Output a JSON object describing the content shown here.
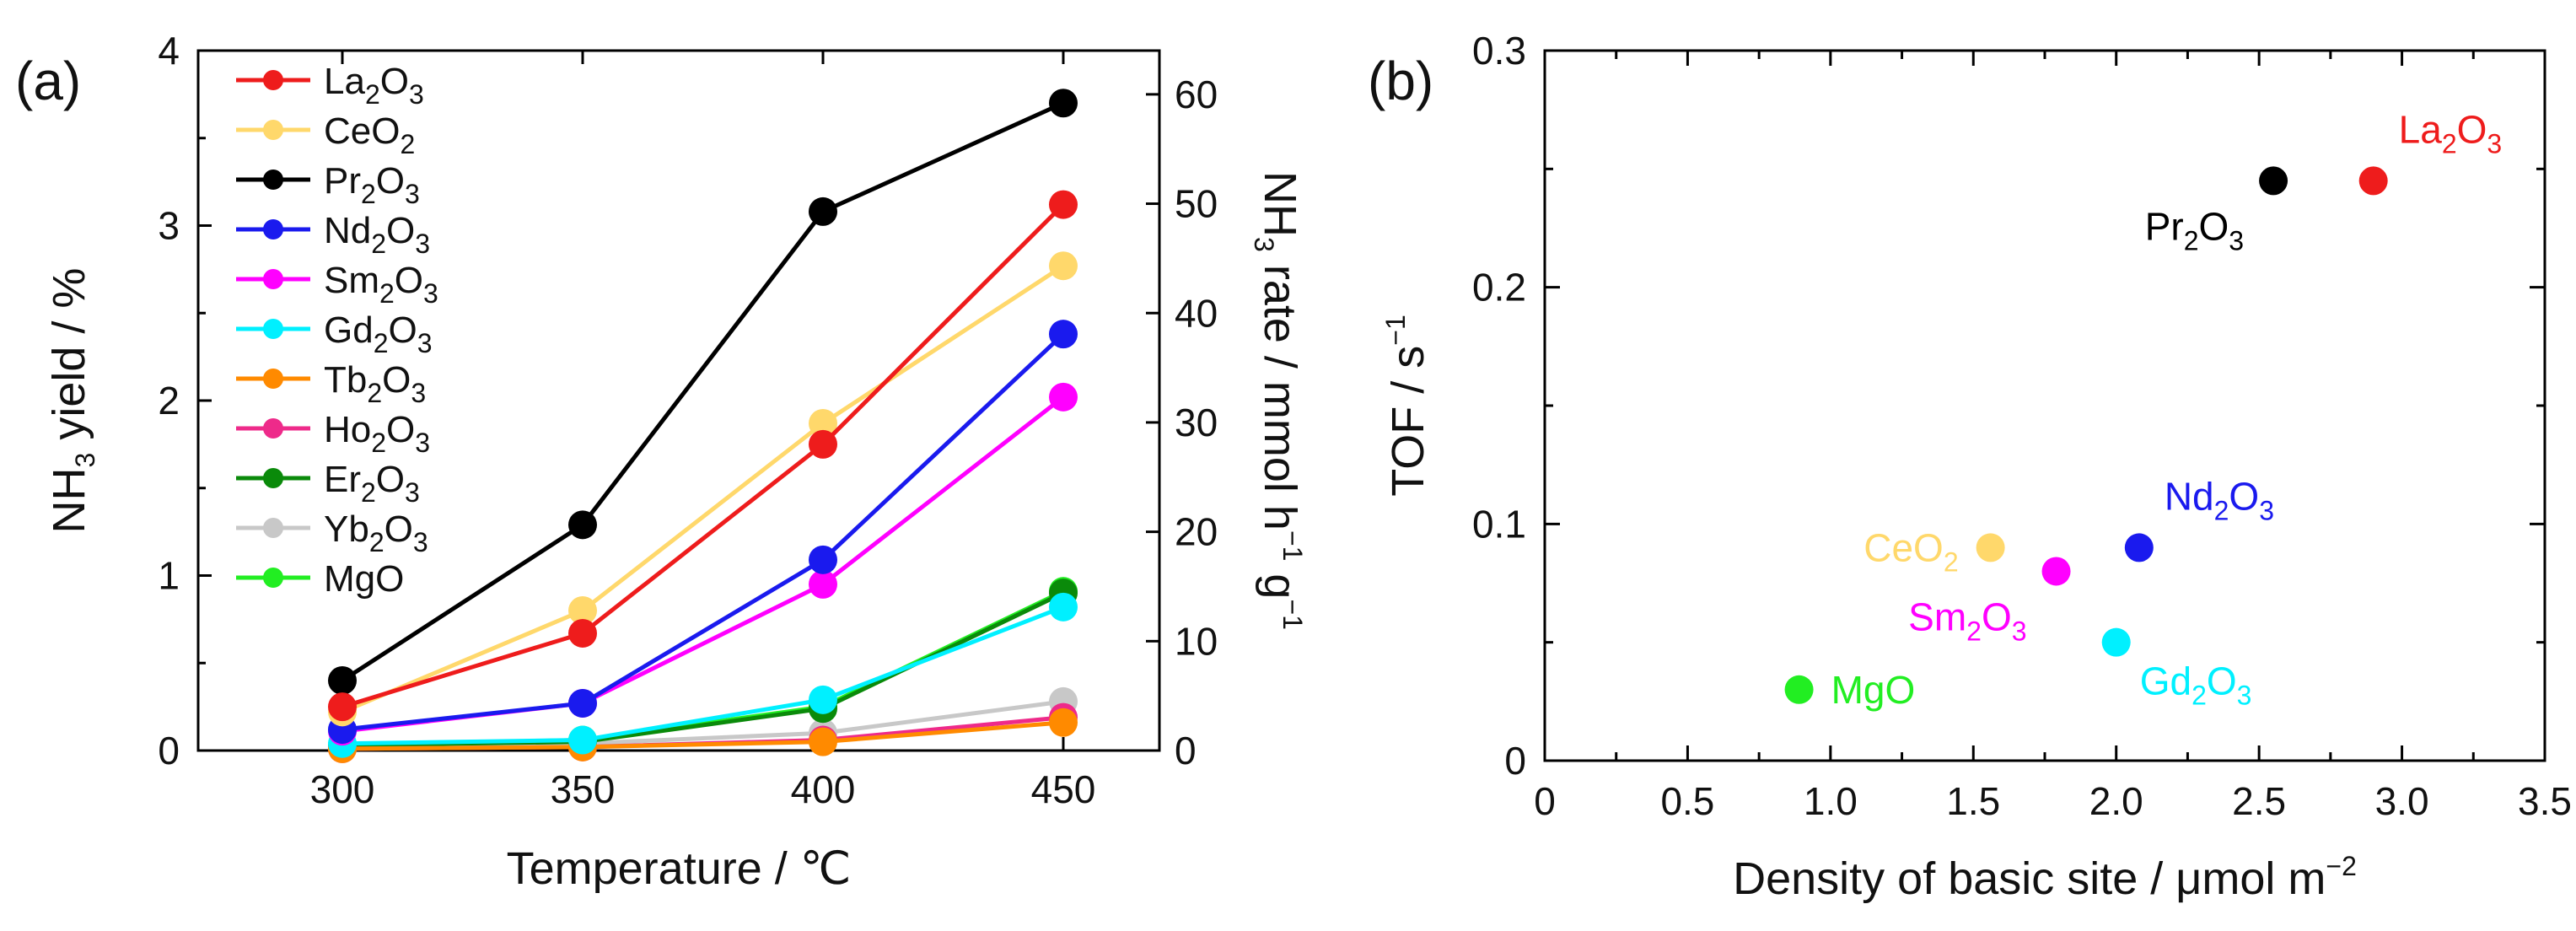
{
  "chart_data": [
    {
      "panel": "(a)",
      "type": "line",
      "xlabel": "Temperature / ℃",
      "ylabel": "NH3 yield / %",
      "y2label": "NH3 rate / mmol h−1 g−1",
      "xlim": [
        270,
        470
      ],
      "ylim": [
        0,
        4
      ],
      "y2lim": [
        0,
        64
      ],
      "x": [
        300,
        350,
        400,
        450
      ],
      "xticks": [
        300,
        350,
        400,
        450
      ],
      "yticks": [
        0,
        1,
        2,
        3,
        4
      ],
      "y2ticks": [
        0,
        10,
        20,
        30,
        40,
        50,
        60
      ],
      "legend_position": "top-left",
      "series": [
        {
          "name": "La2O3",
          "color": "#ee1c1c",
          "values": [
            0.25,
            0.67,
            1.75,
            3.12
          ]
        },
        {
          "name": "CeO2",
          "color": "#ffd86b",
          "values": [
            0.22,
            0.8,
            1.87,
            2.77
          ]
        },
        {
          "name": "Pr2O3",
          "color": "#000000",
          "values": [
            0.4,
            1.29,
            3.08,
            3.7
          ]
        },
        {
          "name": "Nd2O3",
          "color": "#1a1aee",
          "values": [
            0.12,
            0.27,
            1.09,
            2.38
          ]
        },
        {
          "name": "Sm2O3",
          "color": "#ff00ff",
          "values": [
            0.11,
            0.27,
            0.95,
            2.02
          ]
        },
        {
          "name": "Gd2O3",
          "color": "#00f0ff",
          "values": [
            0.04,
            0.06,
            0.29,
            0.82
          ]
        },
        {
          "name": "Tb2O3",
          "color": "#ff8a00",
          "values": [
            0.01,
            0.02,
            0.05,
            0.16
          ]
        },
        {
          "name": "Ho2O3",
          "color": "#ee2a8a",
          "values": [
            0.01,
            0.02,
            0.06,
            0.19
          ]
        },
        {
          "name": "Er2O3",
          "color": "#0a8a0a",
          "values": [
            0.03,
            0.05,
            0.24,
            0.9
          ]
        },
        {
          "name": "Yb2O3",
          "color": "#c8c8c8",
          "values": [
            0.02,
            0.04,
            0.1,
            0.28
          ]
        },
        {
          "name": "MgO",
          "color": "#22ee22",
          "values": [
            0.03,
            0.06,
            0.25,
            0.91
          ]
        }
      ]
    },
    {
      "panel": "(b)",
      "type": "scatter",
      "xlabel": "Density of basic site / μmol  m−2",
      "ylabel": "TOF / s−1",
      "xlim": [
        0,
        3.5
      ],
      "ylim": [
        0,
        0.3
      ],
      "xticks": [
        "0",
        "0.5",
        "1.0",
        "1.5",
        "2.0",
        "2.5",
        "3.0",
        "3.5"
      ],
      "yticks": [
        "0",
        "0.1",
        "0.2",
        "0.3"
      ],
      "points": [
        {
          "name": "La2O3",
          "x": 2.9,
          "y": 0.245,
          "color": "#ee1c1c",
          "label_pos": "above-right"
        },
        {
          "name": "Pr2O3",
          "x": 2.55,
          "y": 0.245,
          "color": "#000000",
          "label_pos": "below-left"
        },
        {
          "name": "Nd2O3",
          "x": 2.08,
          "y": 0.09,
          "color": "#1a1aee",
          "label_pos": "above-right"
        },
        {
          "name": "CeO2",
          "x": 1.56,
          "y": 0.09,
          "color": "#ffd86b",
          "label_pos": "left"
        },
        {
          "name": "Sm2O3",
          "x": 1.79,
          "y": 0.08,
          "color": "#ff00ff",
          "label_pos": "below-left"
        },
        {
          "name": "Gd2O3",
          "x": 2.0,
          "y": 0.05,
          "color": "#00f0ff",
          "label_pos": "below-right"
        },
        {
          "name": "MgO",
          "x": 0.89,
          "y": 0.03,
          "color": "#22ee22",
          "label_pos": "right"
        }
      ]
    }
  ]
}
